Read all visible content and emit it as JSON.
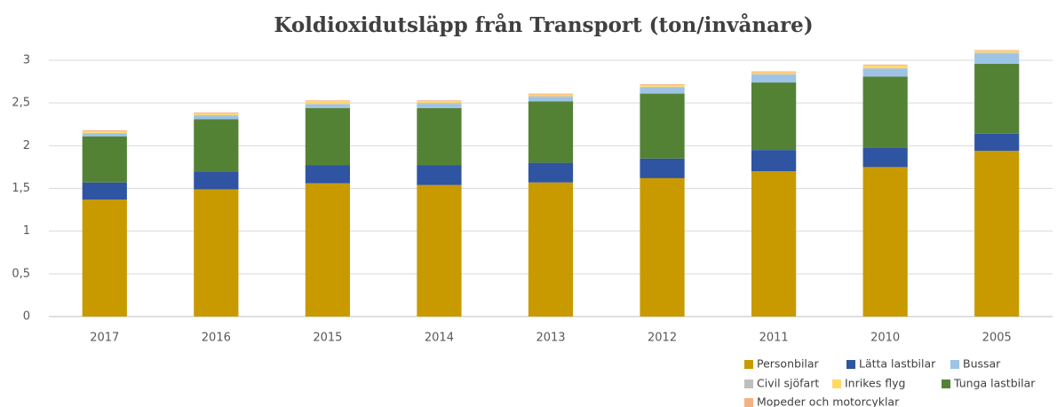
{
  "chart_data": {
    "type": "stacked_bar",
    "title": "Koldioxidutsläpp från Transport (ton/invånare)",
    "categories": [
      "2017",
      "2016",
      "2015",
      "2014",
      "2013",
      "2012",
      "2011",
      "2010",
      "2005"
    ],
    "series": [
      {
        "name": "Personbilar",
        "color": "#c89a00",
        "values": [
          1.37,
          1.49,
          1.56,
          1.54,
          1.57,
          1.62,
          1.7,
          1.75,
          1.94
        ]
      },
      {
        "name": "Lätta lastbilar",
        "color": "#2e54a2",
        "values": [
          0.2,
          0.21,
          0.21,
          0.23,
          0.23,
          0.23,
          0.25,
          0.23,
          0.2
        ]
      },
      {
        "name": "Bussar",
        "color": "#9dc3e6",
        "values": [
          0.03,
          0.04,
          0.04,
          0.05,
          0.05,
          0.07,
          0.09,
          0.09,
          0.12
        ]
      },
      {
        "name": "Civil sjöfart",
        "color": "#bfbfbf",
        "values": [
          0.01,
          0.01,
          0.01,
          0.01,
          0.01,
          0.01,
          0.01,
          0.01,
          0.01
        ]
      },
      {
        "name": "Inrikes flyg",
        "color": "#ffd966",
        "values": [
          0.02,
          0.02,
          0.03,
          0.02,
          0.02,
          0.02,
          0.02,
          0.03,
          0.02
        ]
      },
      {
        "name": "Tunga lastbilar",
        "color": "#548235",
        "values": [
          0.54,
          0.61,
          0.67,
          0.67,
          0.72,
          0.76,
          0.79,
          0.83,
          0.82
        ]
      },
      {
        "name": "Mopeder och motorcyklar",
        "color": "#f4b183",
        "values": [
          0.01,
          0.01,
          0.01,
          0.01,
          0.01,
          0.01,
          0.01,
          0.01,
          0.01
        ]
      }
    ],
    "ylim": [
      0,
      3
    ],
    "yticks": [
      0,
      {
        "value": 0.5,
        "label": "0,5"
      },
      1,
      {
        "value": 1.5,
        "label": "1,5"
      },
      2,
      {
        "value": 2.5,
        "label": "2,5"
      },
      3
    ],
    "grid": true
  }
}
